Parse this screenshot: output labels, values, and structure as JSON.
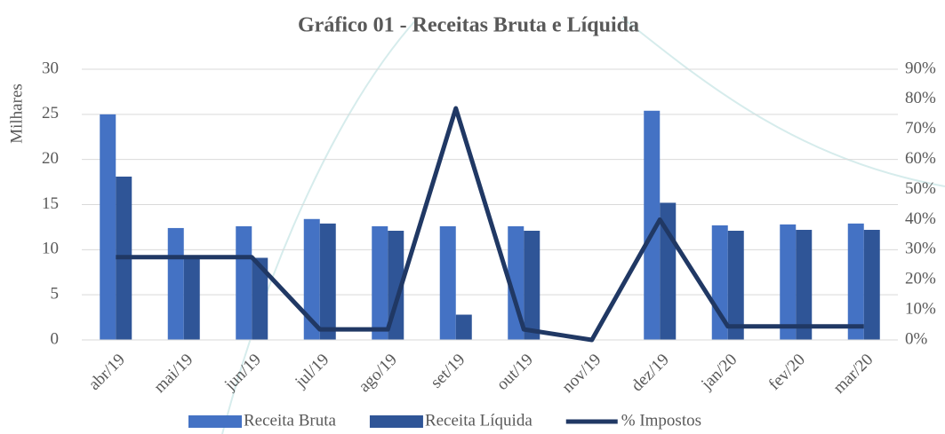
{
  "chart_data": {
    "type": "bar_line",
    "title": "Gráfico 01 - Receitas Bruta e Líquida",
    "y_label": "Milhares",
    "categories": [
      "abr/19",
      "mai/19",
      "jun/19",
      "jul/19",
      "ago/19",
      "set/19",
      "out/19",
      "nov/19",
      "dez/19",
      "jan/20",
      "fev/20",
      "mar/20"
    ],
    "series": [
      {
        "name": "Receita Bruta",
        "type": "bar",
        "color": "#4472c4",
        "values": [
          25,
          12.4,
          12.6,
          13.4,
          12.6,
          12.6,
          12.6,
          0,
          25.4,
          12.7,
          12.8,
          12.9
        ]
      },
      {
        "name": "Receita Líquida",
        "type": "bar",
        "color": "#2f5597",
        "values": [
          18.1,
          9.2,
          9.1,
          12.9,
          12.1,
          2.8,
          12.1,
          0,
          15.2,
          12.1,
          12.2,
          12.2
        ]
      },
      {
        "name": "% Impostos",
        "type": "line",
        "axis": "y2",
        "color": "#203864",
        "values": [
          27.5,
          27.5,
          27.5,
          3.5,
          3.5,
          77,
          3.5,
          0,
          40,
          4.5,
          4.5,
          4.5
        ]
      }
    ],
    "ylim": [
      0,
      30
    ],
    "yticks": [
      0,
      5,
      10,
      15,
      20,
      25,
      30
    ],
    "y2lim": [
      0,
      90
    ],
    "y2ticks": [
      {
        "value": 0,
        "label": "0%"
      },
      {
        "value": 10,
        "label": "10%"
      },
      {
        "value": 20,
        "label": "20%"
      },
      {
        "value": 30,
        "label": "30%"
      },
      {
        "value": 40,
        "label": "40%"
      },
      {
        "value": 50,
        "label": "50%"
      },
      {
        "value": 60,
        "label": "60%"
      },
      {
        "value": 70,
        "label": "70%"
      },
      {
        "value": 80,
        "label": "80%"
      },
      {
        "value": 90,
        "label": "90%"
      }
    ],
    "grid": true,
    "legend": "bottom"
  }
}
